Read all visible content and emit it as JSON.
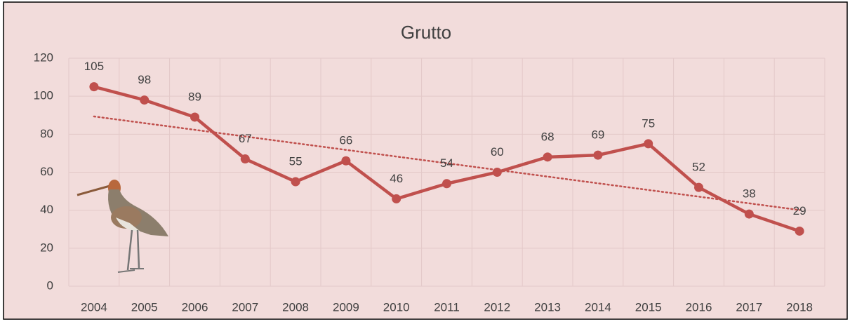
{
  "chart_data": {
    "type": "line",
    "title": "Grutto",
    "categories": [
      "2004",
      "2005",
      "2006",
      "2007",
      "2008",
      "2009",
      "2010",
      "2011",
      "2012",
      "2013",
      "2014",
      "2015",
      "2016",
      "2017",
      "2018"
    ],
    "values": [
      105,
      98,
      89,
      67,
      55,
      66,
      46,
      54,
      60,
      68,
      69,
      75,
      52,
      38,
      29
    ],
    "color": "#c0504d",
    "ylim": [
      0,
      120
    ],
    "yticks": [
      0,
      20,
      40,
      60,
      80,
      100,
      120
    ],
    "grid": true,
    "data_labels": true,
    "trendline": "linear"
  }
}
